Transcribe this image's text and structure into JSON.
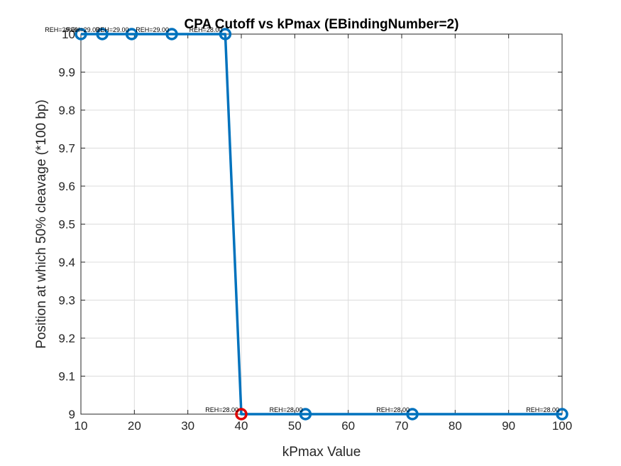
{
  "chart_data": {
    "type": "line",
    "title": "CPA Cutoff vs kPmax (EBindingNumber=2)",
    "xlabel": "kPmax Value",
    "ylabel": "Position at which 50% cleavage (*100 bp)",
    "xlim": [
      10,
      100
    ],
    "ylim": [
      9,
      10
    ],
    "xticks": [
      10,
      20,
      30,
      40,
      50,
      60,
      70,
      80,
      90,
      100
    ],
    "yticks": [
      9,
      9.1,
      9.2,
      9.3,
      9.4,
      9.5,
      9.6,
      9.7,
      9.8,
      9.9,
      10
    ],
    "ytick_labels": [
      "9",
      "9.1",
      "9.2",
      "9.3",
      "9.4",
      "9.5",
      "9.6",
      "9.7",
      "9.8",
      "9.9",
      "10"
    ],
    "grid": true,
    "series_color": "#0072BD",
    "highlight_color": "#E00000",
    "points": [
      {
        "x": 10,
        "y": 10,
        "label": "REH=29.00"
      },
      {
        "x": 14,
        "y": 10,
        "label": "REH=29.00"
      },
      {
        "x": 19.5,
        "y": 10,
        "label": "REH=29.00"
      },
      {
        "x": 27,
        "y": 10,
        "label": "REH=29.00"
      },
      {
        "x": 37,
        "y": 10,
        "label": "REH=28.00"
      },
      {
        "x": 40,
        "y": 9,
        "label": "REH=28.00",
        "highlight": true
      },
      {
        "x": 52,
        "y": 9,
        "label": "REH=28.00"
      },
      {
        "x": 72,
        "y": 9,
        "label": "REH=28.00"
      },
      {
        "x": 100,
        "y": 9,
        "label": "REH=28.00"
      }
    ]
  }
}
